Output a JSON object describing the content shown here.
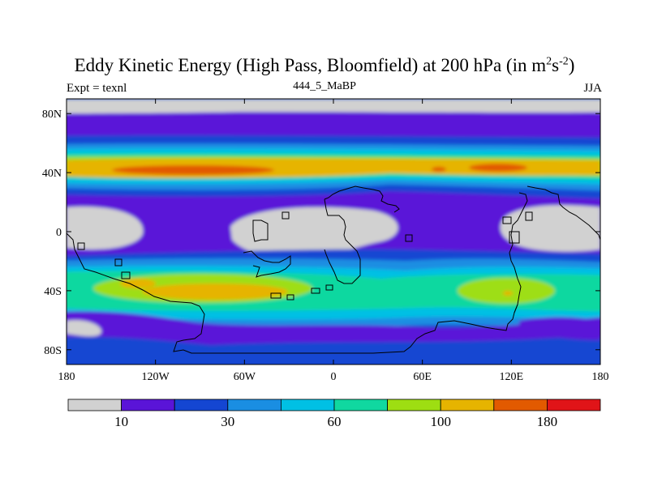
{
  "title": {
    "main": "Eddy Kinetic Energy (High Pass, Bloomfield) at 200 hPa (in m",
    "sup1": "2",
    "s": "s",
    "sup2": "-2",
    "close": ")"
  },
  "subtitle": "444_5_MaBP",
  "left_label": "Expt = texnl",
  "right_label": "JJA",
  "chart_data": {
    "type": "heatmap",
    "projection": "cylindrical-equidistant",
    "lon_range": [
      -180,
      180
    ],
    "lat_range": [
      -90,
      90
    ],
    "x_ticks": [
      {
        "v": -180,
        "t": "180"
      },
      {
        "v": -120,
        "t": "120W"
      },
      {
        "v": -60,
        "t": "60W"
      },
      {
        "v": 0,
        "t": "0"
      },
      {
        "v": 60,
        "t": "60E"
      },
      {
        "v": 120,
        "t": "120E"
      },
      {
        "v": 180,
        "t": "180"
      }
    ],
    "y_ticks": [
      {
        "v": 80,
        "t": "80N"
      },
      {
        "v": 40,
        "t": "40N"
      },
      {
        "v": 0,
        "t": "0"
      },
      {
        "v": -40,
        "t": "40S"
      },
      {
        "v": -80,
        "t": "80S"
      }
    ],
    "levels": [
      10,
      20,
      30,
      45,
      60,
      80,
      100,
      140,
      180
    ],
    "level_labels": [
      {
        "i": 0,
        "t": "10"
      },
      {
        "i": 2,
        "t": "30"
      },
      {
        "i": 4,
        "t": "60"
      },
      {
        "i": 6,
        "t": "100"
      },
      {
        "i": 8,
        "t": "180"
      }
    ],
    "colors": [
      "#d1d1d1",
      "#5a14d8",
      "#1446d2",
      "#1a8ee2",
      "#00c0e4",
      "#10d8a0",
      "#9ede12",
      "#e6b400",
      "#e25a00",
      "#e01418"
    ],
    "grid": false,
    "legend": "bottom"
  },
  "icons": {
    "coastline": "coastline-outline"
  }
}
